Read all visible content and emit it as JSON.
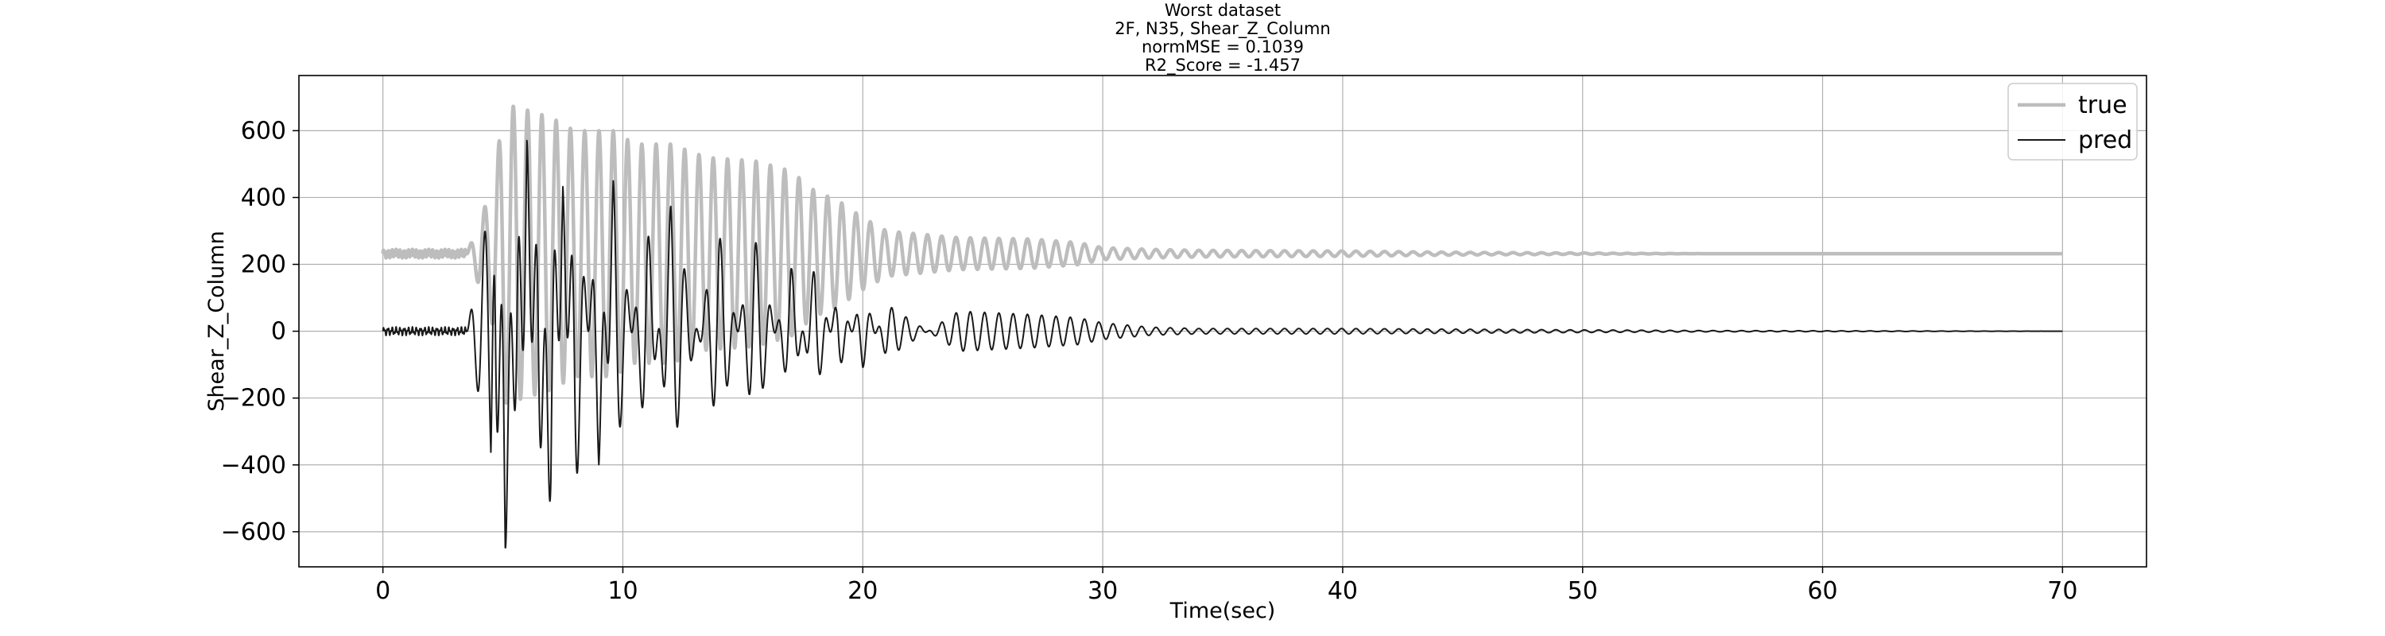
{
  "chart_data": {
    "type": "line",
    "title_lines": [
      "Worst dataset",
      "2F, N35, Shear_Z_Column",
      "normMSE = 0.1039",
      "R2_Score = -1.457"
    ],
    "xlabel": "Time(sec)",
    "ylabel": "Shear_Z_Column",
    "xlim": [
      -3.5,
      73.5
    ],
    "ylim": [
      -705,
      765
    ],
    "x_ticks": [
      0,
      10,
      20,
      30,
      40,
      50,
      60,
      70
    ],
    "y_ticks": [
      -600,
      -400,
      -200,
      0,
      200,
      400,
      600
    ],
    "x_tick_labels": [
      "0",
      "10",
      "20",
      "30",
      "40",
      "50",
      "60",
      "70"
    ],
    "y_tick_labels": [
      "−600",
      "−400",
      "−200",
      "0",
      "200",
      "400",
      "600"
    ],
    "grid": true,
    "legend_position": "top-right",
    "series": [
      {
        "name": "true",
        "color": "#bdbdbd",
        "offset": 232,
        "points": [
          [
            0,
            232
          ],
          [
            3.5,
            232
          ],
          [
            4.5,
            420
          ],
          [
            5.1,
            680
          ],
          [
            6.1,
            660
          ],
          [
            7.0,
            640
          ],
          [
            8.0,
            600
          ],
          [
            9.6,
            600
          ],
          [
            10.5,
            560
          ],
          [
            12.0,
            560
          ],
          [
            13.5,
            520
          ],
          [
            15.5,
            510
          ],
          [
            17.0,
            480
          ],
          [
            18.0,
            420
          ],
          [
            19.0,
            390
          ],
          [
            20.0,
            340
          ],
          [
            21.0,
            300
          ],
          [
            24.0,
            280
          ],
          [
            27.0,
            276
          ],
          [
            29.0,
            265
          ],
          [
            30.0,
            250
          ],
          [
            32.0,
            245
          ],
          [
            34.0,
            242
          ],
          [
            40.0,
            240
          ],
          [
            45.0,
            236
          ],
          [
            50.0,
            234
          ],
          [
            55.0,
            232
          ],
          [
            70.0,
            232
          ]
        ]
      },
      {
        "name": "pred",
        "color": "#1a1a1a",
        "offset": 0,
        "points": [
          [
            0,
            0
          ],
          [
            3.5,
            -5
          ],
          [
            4.5,
            400
          ],
          [
            4.7,
            -640
          ],
          [
            5.1,
            700
          ],
          [
            5.6,
            -560
          ],
          [
            6.0,
            600
          ],
          [
            6.5,
            -590
          ],
          [
            7.0,
            650
          ],
          [
            7.5,
            -440
          ],
          [
            8.0,
            520
          ],
          [
            9.0,
            -400
          ],
          [
            9.6,
            450
          ],
          [
            11.0,
            -340
          ],
          [
            12.0,
            380
          ],
          [
            14.0,
            -300
          ],
          [
            15.5,
            280
          ],
          [
            17.0,
            -200
          ],
          [
            18.0,
            200
          ],
          [
            19.0,
            -120
          ],
          [
            20.0,
            110
          ],
          [
            21.0,
            -80
          ],
          [
            24.0,
            60
          ],
          [
            27.0,
            50
          ],
          [
            29.0,
            40
          ],
          [
            30.0,
            25
          ],
          [
            32.0,
            12
          ],
          [
            34.0,
            8
          ],
          [
            40.0,
            8
          ],
          [
            45.0,
            6
          ],
          [
            50.0,
            4
          ],
          [
            55.0,
            2
          ],
          [
            70.0,
            0
          ]
        ]
      }
    ]
  }
}
